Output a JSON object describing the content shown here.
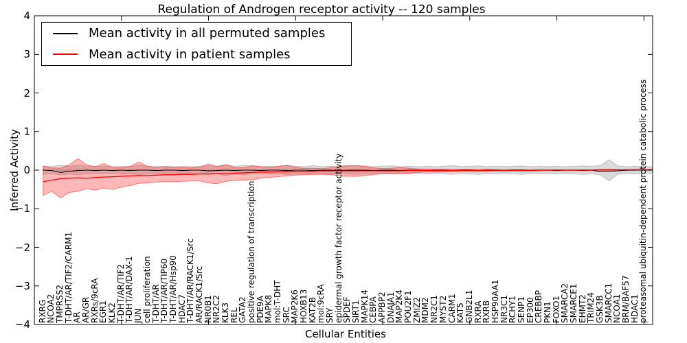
{
  "figure": {
    "title": "Regulation of Androgen receptor activity -- 120 samples"
  },
  "axes": {
    "xlabel": "Cellular Entities",
    "ylabel": "Inferred Activity"
  },
  "legend": {
    "items": [
      {
        "label": "Mean activity in all permuted samples",
        "color": "#000000"
      },
      {
        "label": "Mean activity in patient samples",
        "color": "#ff0000"
      }
    ]
  },
  "chart_data": {
    "type": "line",
    "title": "Regulation of Androgen receptor activity -- 120 samples",
    "xlabel": "Cellular Entities",
    "ylabel": "Inferred Activity",
    "ylim": [
      -4,
      4
    ],
    "xlim": [
      0,
      71
    ],
    "grid": false,
    "legend_position": "upper left",
    "ytick_values": [
      -4,
      -3,
      -2,
      -1,
      0,
      1,
      2,
      3,
      4
    ],
    "ytick_labels": [
      "−4",
      "−3",
      "−2",
      "−1",
      "0",
      "1",
      "2",
      "3",
      "4"
    ],
    "xtick_values": [
      10,
      20,
      30,
      40,
      50,
      60,
      70
    ],
    "zero_line": {
      "y": 0,
      "style": "dotted",
      "color": "#000000"
    },
    "categories": [
      "RXRG",
      "NCOA2",
      "TMPRSS2",
      "T-DHT/AR/TIF2/CARM1",
      "AR",
      "AR/GR",
      "RXRs/9cRA",
      "EGR1",
      "KLK2",
      "T-DHT/AR/TIF2",
      "T-DHT/AR/DAX-1",
      "JUN",
      "cell proliferation",
      "T-DHT/AR",
      "T-DHT/AR/TIP60",
      "T-DHT/AR/Hsp90",
      "HDAC7",
      "T-DHT/AR/RACK1/Src",
      "AR/RACK1/Src",
      "NR0B1",
      "NR2C2",
      "KLK3",
      "REL",
      "GATA2",
      "positive regulation of transcription",
      "PDE9A",
      "MAPK8",
      "mol:T-DHT",
      "SRC",
      "MAP2K6",
      "HOXB13",
      "KAT2B",
      "mol:9cRA",
      "SRY",
      "epidermal growth factor receptor activity",
      "SPDEF",
      "SIRT1",
      "MAPK14",
      "CEBPA",
      "APPBP2",
      "DNAJA1",
      "MAP2K4",
      "POU2F1",
      "ZMIZ2",
      "MDM2",
      "NR2C1",
      "MYST2",
      "CARM1",
      "KAT5",
      "GNB2L1",
      "RXRA",
      "RXRB",
      "HSP90AA1",
      "NR3C1",
      "RCHY1",
      "SENP1",
      "EP300",
      "CREBBP",
      "PKN1",
      "FOXO1",
      "SMARCA2",
      "SMARCE1",
      "EHMT2",
      "TRIM24",
      "GSK3B",
      "SMARCC1",
      "NCOA1",
      "BRM/BAF57",
      "HDAC1",
      "proteasomal ubiquitin-dependent protein catabolic process"
    ],
    "series": [
      {
        "name": "Mean activity in all permuted samples",
        "color": "#000000",
        "values": [
          0,
          -0.01,
          -0.06,
          -0.03,
          -0.01,
          0,
          -0.01,
          0,
          -0.01,
          0,
          -0.01,
          0,
          0,
          -0.01,
          0,
          0,
          -0.01,
          0,
          0,
          -0.02,
          -0.01,
          0,
          -0.01,
          0,
          0,
          -0.01,
          0,
          0,
          -0.01,
          0,
          0,
          -0.01,
          0,
          0,
          -0.01,
          0,
          0,
          0,
          -0.01,
          0,
          0,
          -0.01,
          0,
          0,
          -0.01,
          0,
          0,
          -0.01,
          0,
          0,
          -0.01,
          0,
          0,
          -0.01,
          0,
          0,
          -0.01,
          0,
          0,
          -0.01,
          0,
          0,
          -0.01,
          0,
          -0.04,
          -0.03,
          -0.02,
          0,
          0,
          0
        ]
      },
      {
        "name": "Mean activity in patient samples",
        "color": "#ff0000",
        "values": [
          -0.3,
          -0.26,
          -0.22,
          -0.21,
          -0.2,
          -0.21,
          -0.19,
          -0.18,
          -0.17,
          -0.16,
          -0.15,
          -0.14,
          -0.14,
          -0.13,
          -0.12,
          -0.12,
          -0.11,
          -0.11,
          -0.1,
          -0.1,
          -0.09,
          -0.09,
          -0.08,
          -0.07,
          -0.06,
          -0.05,
          -0.05,
          -0.04,
          -0.04,
          -0.03,
          -0.03,
          -0.03,
          -0.02,
          -0.02,
          -0.02,
          -0.02,
          -0.02,
          -0.02,
          -0.02,
          -0.02,
          -0.02,
          -0.02,
          -0.01,
          -0.01,
          -0.01,
          -0.01,
          -0.01,
          -0.01,
          -0.01,
          -0.01,
          -0.01,
          -0.01,
          -0.01,
          -0.01,
          -0.01,
          -0.01,
          -0.01,
          0,
          0,
          0,
          0,
          0,
          0,
          0,
          0.01,
          0.01,
          0.01,
          0.01,
          0.01,
          0.01
        ]
      }
    ],
    "bands": [
      {
        "name": "permuted samples range",
        "fill": "rgba(0,0,0,0.14)",
        "edge": "rgba(0,0,0,0.18)",
        "upper": [
          0.11,
          0.09,
          0.13,
          0.1,
          0.13,
          0.1,
          0.09,
          0.1,
          0.09,
          0.1,
          0.09,
          0.13,
          0.1,
          0.09,
          0.1,
          0.09,
          0.1,
          0.09,
          0.1,
          0.11,
          0.1,
          0.15,
          0.1,
          0.12,
          0.1,
          0.09,
          0.1,
          0.09,
          0.13,
          0.1,
          0.09,
          0.12,
          0.09,
          0.1,
          0.09,
          0.1,
          0.12,
          0.1,
          0.09,
          0.1,
          0.11,
          0.09,
          0.1,
          0.09,
          0.1,
          0.09,
          0.1,
          0.12,
          0.09,
          0.1,
          0.11,
          0.09,
          0.1,
          0.09,
          0.1,
          0.11,
          0.09,
          0.1,
          0.09,
          0.1,
          0.09,
          0.1,
          0.11,
          0.1,
          0.12,
          0.27,
          0.11,
          0.09,
          0.1,
          0.09
        ],
        "lower": [
          -0.11,
          -0.09,
          -0.13,
          -0.1,
          -0.12,
          -0.1,
          -0.09,
          -0.1,
          -0.09,
          -0.1,
          -0.09,
          -0.12,
          -0.1,
          -0.09,
          -0.1,
          -0.09,
          -0.1,
          -0.09,
          -0.1,
          -0.11,
          -0.1,
          -0.14,
          -0.1,
          -0.12,
          -0.1,
          -0.09,
          -0.1,
          -0.09,
          -0.12,
          -0.1,
          -0.09,
          -0.11,
          -0.09,
          -0.1,
          -0.09,
          -0.1,
          -0.11,
          -0.1,
          -0.09,
          -0.1,
          -0.1,
          -0.09,
          -0.1,
          -0.09,
          -0.1,
          -0.09,
          -0.1,
          -0.11,
          -0.09,
          -0.1,
          -0.11,
          -0.09,
          -0.1,
          -0.09,
          -0.1,
          -0.11,
          -0.09,
          -0.1,
          -0.09,
          -0.1,
          -0.09,
          -0.1,
          -0.11,
          -0.1,
          -0.12,
          -0.28,
          -0.11,
          -0.09,
          -0.1,
          -0.09
        ]
      },
      {
        "name": "patient samples range",
        "fill": "rgba(255,20,20,0.30)",
        "edge": "rgba(255,60,60,0.65)",
        "upper": [
          0.1,
          0.06,
          0.05,
          0.14,
          0.3,
          0.14,
          0.09,
          0.17,
          0.07,
          0.06,
          0.1,
          0.21,
          0.1,
          0.07,
          0.09,
          0.07,
          0.07,
          0.06,
          0.08,
          0.16,
          0.09,
          0.14,
          0.07,
          0.06,
          0.12,
          0.09,
          0.07,
          0.1,
          0.12,
          0.07,
          0.05,
          0.05,
          0.04,
          0.06,
          0.1,
          0.12,
          0.12,
          0.1,
          0.06,
          0.04,
          0.05,
          0.07,
          0.05,
          0.03,
          0.03,
          0.02,
          0.02,
          0.02,
          0.02,
          0.02,
          0.02,
          0.02,
          0.01,
          0.01,
          0.01,
          0.01,
          0.01,
          0.01,
          0.01,
          0.01,
          0.01,
          0.01,
          0.01,
          0.01,
          0.02,
          0.02,
          0.01,
          0.01,
          0.02,
          0.02
        ],
        "lower": [
          -0.65,
          -0.55,
          -0.72,
          -0.58,
          -0.55,
          -0.48,
          -0.52,
          -0.46,
          -0.5,
          -0.44,
          -0.4,
          -0.34,
          -0.33,
          -0.31,
          -0.3,
          -0.3,
          -0.29,
          -0.28,
          -0.28,
          -0.33,
          -0.35,
          -0.29,
          -0.27,
          -0.26,
          -0.25,
          -0.21,
          -0.19,
          -0.17,
          -0.15,
          -0.13,
          -0.12,
          -0.11,
          -0.11,
          -0.12,
          -0.14,
          -0.16,
          -0.16,
          -0.14,
          -0.11,
          -0.09,
          -0.08,
          -0.09,
          -0.08,
          -0.06,
          -0.05,
          -0.05,
          -0.04,
          -0.04,
          -0.03,
          -0.03,
          -0.03,
          -0.03,
          -0.02,
          -0.02,
          -0.02,
          -0.02,
          -0.02,
          -0.02,
          -0.01,
          -0.01,
          -0.01,
          -0.01,
          -0.01,
          -0.01,
          -0.01,
          -0.01,
          -0.01,
          -0.01,
          0,
          0
        ]
      }
    ]
  }
}
